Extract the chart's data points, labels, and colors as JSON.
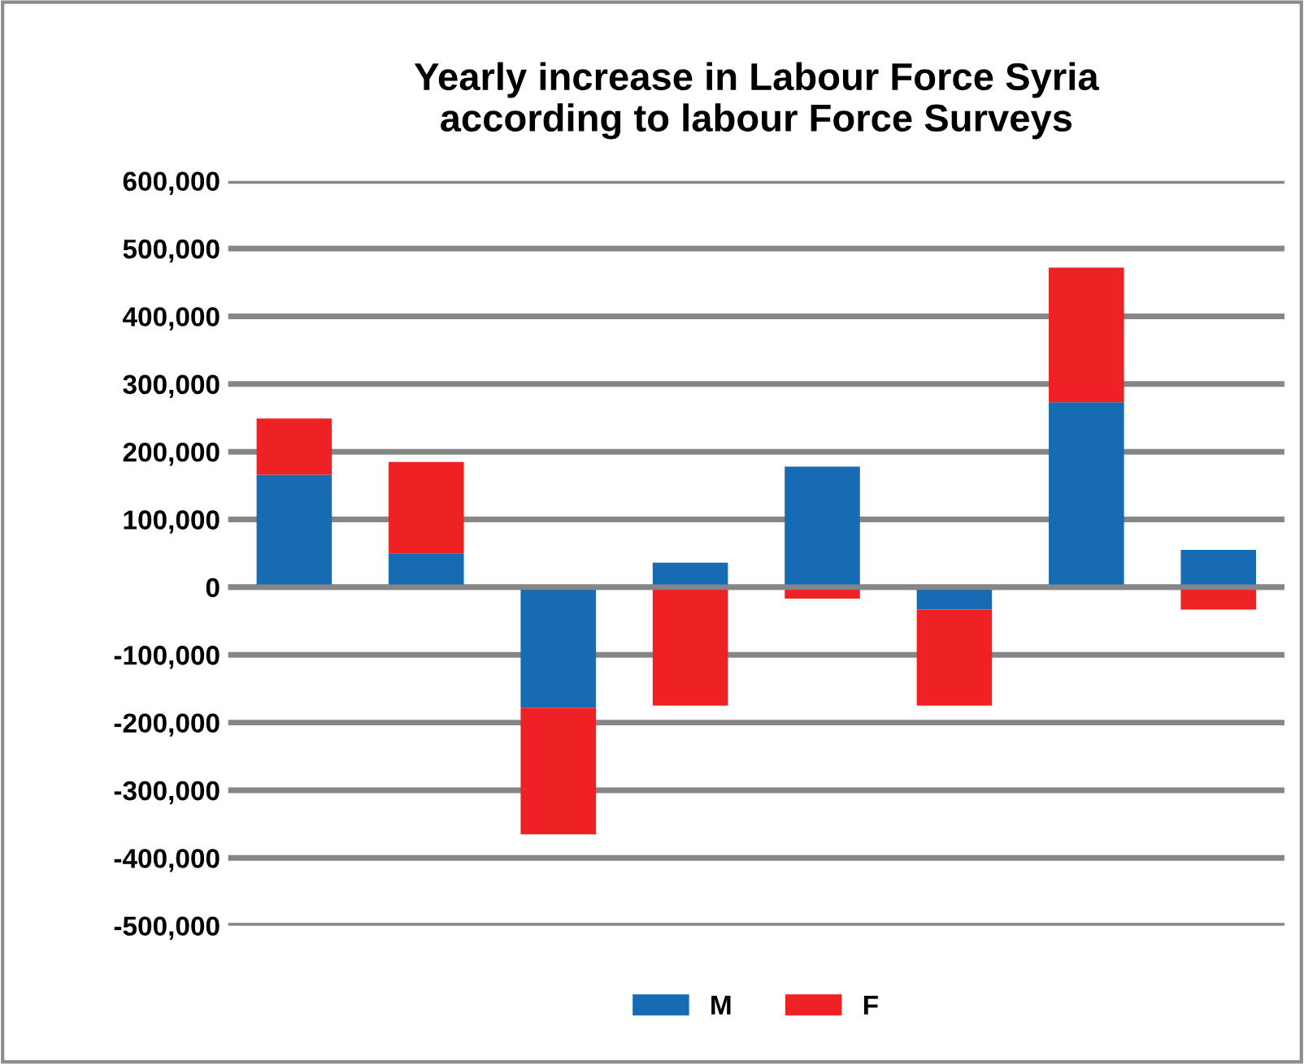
{
  "chart_data": {
    "type": "bar",
    "title": "Yearly increase in Labour Force Syria\naccording to labour Force Surveys",
    "stacked": true,
    "categories": [
      null,
      null,
      null,
      null,
      null,
      null,
      null,
      null
    ],
    "series": [
      {
        "name": "M",
        "color": "#166bb3",
        "values": [
          166000,
          50000,
          -178000,
          36000,
          178000,
          -33000,
          273000,
          55000
        ]
      },
      {
        "name": "F",
        "color": "#ee2224",
        "values": [
          83000,
          135000,
          -187000,
          -175000,
          -17000,
          -142000,
          199000,
          -33000
        ]
      }
    ],
    "ylim": [
      -500000,
      600000
    ],
    "yticks": [
      {
        "value": -500000,
        "label": "-500,000"
      },
      {
        "value": -400000,
        "label": "-400,000"
      },
      {
        "value": -300000,
        "label": "-300,000"
      },
      {
        "value": -200000,
        "label": "-200,000"
      },
      {
        "value": -100000,
        "label": "-100,000"
      },
      {
        "value": 0,
        "label": "0"
      },
      {
        "value": 100000,
        "label": "100,000"
      },
      {
        "value": 200000,
        "label": "200,000"
      },
      {
        "value": 300000,
        "label": "300,000"
      },
      {
        "value": 400000,
        "label": "400,000"
      },
      {
        "value": 500000,
        "label": "500,000"
      },
      {
        "value": 600000,
        "label": "600,000"
      }
    ],
    "grid": "y",
    "legend": "bottom"
  }
}
